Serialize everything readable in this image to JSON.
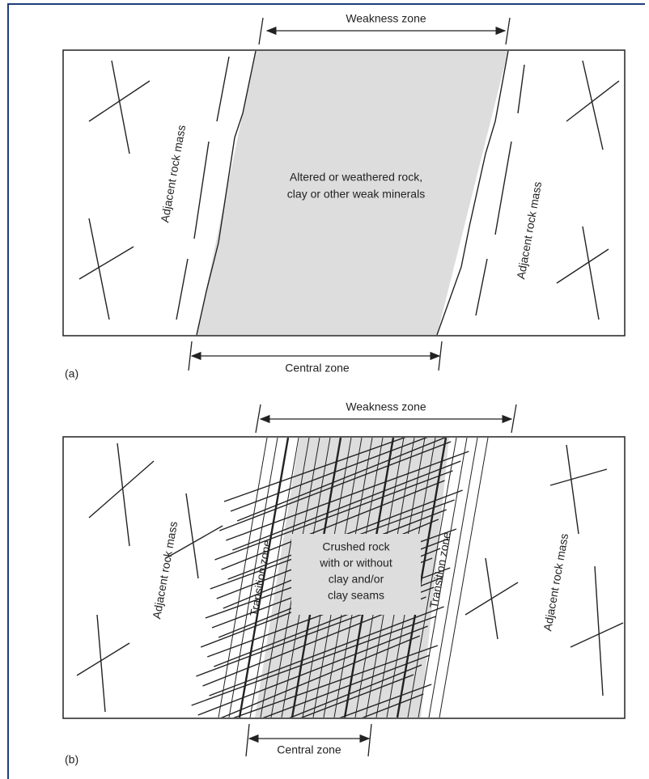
{
  "panel_a": {
    "label": "(a)",
    "weakness_zone": "Weakness zone",
    "central_zone": "Central zone",
    "adjacent_left": "Adjacent rock mass",
    "adjacent_right": "Adjacent rock mass",
    "core_text": [
      "Altered or weathered rock,",
      "clay or other weak minerals"
    ]
  },
  "panel_b": {
    "label": "(b)",
    "weakness_zone": "Weakness zone",
    "central_zone": "Central zone",
    "adjacent_left": "Adjacent rock mass",
    "adjacent_right": "Adjacent rock mass",
    "transition_left": "Transition zone",
    "transition_right": "Transition zone",
    "core_text": [
      "Crushed rock",
      "with or without",
      "clay and/or",
      "clay seams"
    ]
  }
}
